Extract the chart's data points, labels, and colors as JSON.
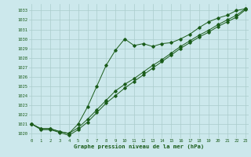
{
  "title": "Graphe pression niveau de la mer (hPa)",
  "background_color": "#cce8ec",
  "grid_color": "#aacccc",
  "line_color": "#1a5c1a",
  "xlim": [
    -0.3,
    23.3
  ],
  "ylim": [
    1019.5,
    1033.7
  ],
  "ytick_vals": [
    1020,
    1021,
    1022,
    1023,
    1024,
    1025,
    1026,
    1027,
    1028,
    1029,
    1030,
    1031,
    1032,
    1033
  ],
  "xtick_vals": [
    0,
    1,
    2,
    3,
    4,
    5,
    6,
    7,
    8,
    9,
    10,
    11,
    12,
    13,
    14,
    15,
    16,
    17,
    18,
    19,
    20,
    21,
    22,
    23
  ],
  "series1_x": [
    0,
    1,
    2,
    3,
    4,
    5,
    6,
    7,
    8,
    9,
    10,
    11,
    12,
    13,
    14,
    15,
    16,
    17,
    18,
    19,
    20,
    21,
    22,
    23
  ],
  "series1_y": [
    1021.0,
    1020.5,
    1020.5,
    1020.2,
    1020.0,
    1021.0,
    1022.8,
    1025.0,
    1027.2,
    1028.8,
    1030.0,
    1029.3,
    1029.5,
    1029.2,
    1029.5,
    1029.6,
    1030.0,
    1030.5,
    1031.2,
    1031.8,
    1032.2,
    1032.5,
    1033.0,
    1033.2
  ],
  "series2_x": [
    0,
    1,
    2,
    3,
    4,
    5,
    6,
    7,
    8,
    9,
    10,
    11,
    12,
    13,
    14,
    15,
    16,
    17,
    18,
    19,
    20,
    21,
    22,
    23
  ],
  "series2_y": [
    1021.0,
    1020.5,
    1020.5,
    1020.2,
    1020.0,
    1020.6,
    1021.5,
    1022.5,
    1023.5,
    1024.5,
    1025.2,
    1025.8,
    1026.5,
    1027.2,
    1027.8,
    1028.5,
    1029.2,
    1029.8,
    1030.4,
    1030.9,
    1031.5,
    1032.0,
    1032.5,
    1033.2
  ],
  "series3_x": [
    0,
    1,
    2,
    3,
    4,
    5,
    6,
    7,
    8,
    9,
    10,
    11,
    12,
    13,
    14,
    15,
    16,
    17,
    18,
    19,
    20,
    21,
    22,
    23
  ],
  "series3_y": [
    1021.0,
    1020.4,
    1020.4,
    1020.1,
    1019.8,
    1020.4,
    1021.2,
    1022.2,
    1023.2,
    1024.0,
    1024.8,
    1025.5,
    1026.2,
    1026.9,
    1027.6,
    1028.3,
    1029.0,
    1029.6,
    1030.2,
    1030.7,
    1031.3,
    1031.8,
    1032.3,
    1033.1
  ]
}
